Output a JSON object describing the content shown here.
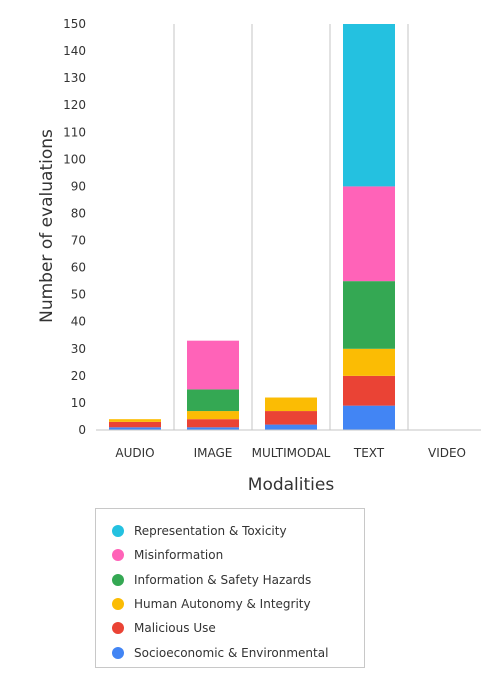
{
  "chart_data": {
    "type": "bar",
    "stacked": true,
    "title": "",
    "xlabel": "Modalities",
    "ylabel": "Number of evaluations",
    "ylim": [
      0,
      150
    ],
    "yticks": [
      0,
      10,
      20,
      30,
      40,
      50,
      60,
      70,
      80,
      90,
      100,
      110,
      120,
      130,
      140,
      150
    ],
    "grid": {
      "horizontal": false,
      "vertical": true
    },
    "legend_position": "bottom",
    "categories": [
      "AUDIO",
      "IMAGE",
      "MULTIMODAL",
      "TEXT",
      "VIDEO"
    ],
    "series": [
      {
        "name": "Socioeconomic & Environmental",
        "color": "#4285f4",
        "values": [
          1,
          1,
          2,
          9,
          0
        ]
      },
      {
        "name": "Malicious Use",
        "color": "#ea4335",
        "values": [
          2,
          3,
          5,
          11,
          0
        ]
      },
      {
        "name": "Human Autonomy & Integrity",
        "color": "#fbbc04",
        "values": [
          1,
          3,
          5,
          10,
          0
        ]
      },
      {
        "name": "Information & Safety Hazards",
        "color": "#34a853",
        "values": [
          0,
          8,
          0,
          25,
          0
        ]
      },
      {
        "name": "Misinformation",
        "color": "#ff63b8",
        "values": [
          0,
          18,
          0,
          35,
          0
        ]
      },
      {
        "name": "Representation & Toxicity",
        "color": "#24c1e0",
        "values": [
          0,
          0,
          0,
          60,
          0
        ]
      }
    ]
  },
  "legend": {
    "items": [
      {
        "label": "Representation & Toxicity",
        "color": "#24c1e0"
      },
      {
        "label": "Misinformation",
        "color": "#ff63b8"
      },
      {
        "label": "Information & Safety Hazards",
        "color": "#34a853"
      },
      {
        "label": "Human Autonomy & Integrity",
        "color": "#fbbc04"
      },
      {
        "label": "Malicious Use",
        "color": "#ea4335"
      },
      {
        "label": "Socioeconomic & Environmental",
        "color": "#4285f4"
      }
    ]
  }
}
